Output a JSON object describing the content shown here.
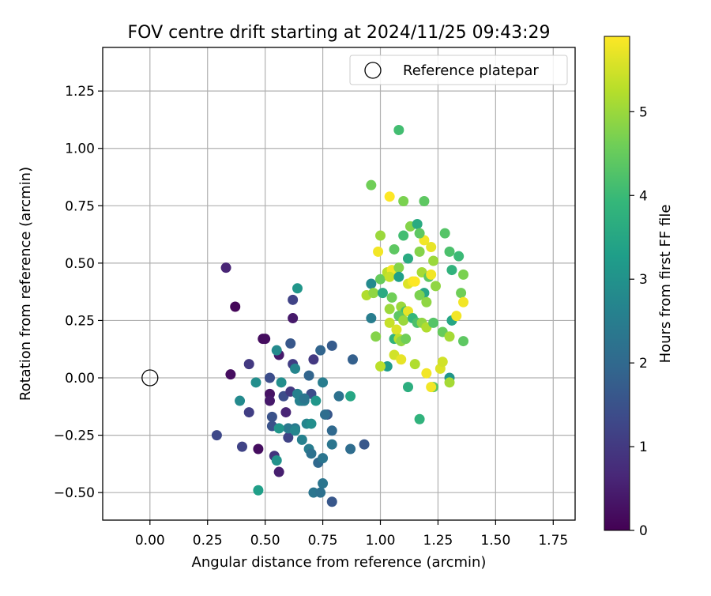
{
  "chart_data": {
    "type": "scatter",
    "title": "FOV centre drift starting at 2024/11/25 09:43:29",
    "xlabel": "Angular distance from reference (arcmin)",
    "ylabel": "Rotation from reference (arcmin)",
    "xlim": [
      -0.205,
      1.845
    ],
    "ylim": [
      -0.62,
      1.44
    ],
    "xticks": [
      "0.00",
      "0.25",
      "0.50",
      "0.75",
      "1.00",
      "1.25",
      "1.50",
      "1.75"
    ],
    "xtick_values": [
      0,
      0.25,
      0.5,
      0.75,
      1.0,
      1.25,
      1.5,
      1.75
    ],
    "yticks": [
      "−0.50",
      "−0.25",
      "0.00",
      "0.25",
      "0.50",
      "0.75",
      "1.00",
      "1.25"
    ],
    "ytick_values": [
      -0.5,
      -0.25,
      0,
      0.25,
      0.5,
      0.75,
      1.0,
      1.25
    ],
    "grid": true,
    "legend": {
      "position": "top-right",
      "entries": [
        "Reference platepar"
      ]
    },
    "reference_point": {
      "x": 0.0,
      "y": 0.0,
      "marker": "open-circle"
    },
    "colorbar": {
      "label": "Hours from first FF file",
      "colormap": "viridis",
      "range": [
        0,
        5.9
      ],
      "ticks": [
        "0",
        "1",
        "2",
        "3",
        "4",
        "5"
      ],
      "tick_values": [
        0,
        1,
        2,
        3,
        4,
        5
      ]
    },
    "colormap_stops": [
      "#440154",
      "#482878",
      "#3e4989",
      "#31688e",
      "#26828e",
      "#1f9e89",
      "#35b779",
      "#6ece58",
      "#b5de2b",
      "#fde725"
    ],
    "points": [
      {
        "x": 0.33,
        "y": 0.48,
        "h": 0.6
      },
      {
        "x": 0.37,
        "y": 0.31,
        "h": 0.1
      },
      {
        "x": 0.35,
        "y": 0.015,
        "h": 0.2
      },
      {
        "x": 0.49,
        "y": 0.17,
        "h": 0.2
      },
      {
        "x": 0.56,
        "y": 0.1,
        "h": 0.4
      },
      {
        "x": 0.62,
        "y": 0.26,
        "h": 0.4
      },
      {
        "x": 0.62,
        "y": 0.34,
        "h": 1.2
      },
      {
        "x": 0.52,
        "y": -0.07,
        "h": 0.3
      },
      {
        "x": 0.52,
        "y": -0.1,
        "h": 0.4
      },
      {
        "x": 0.59,
        "y": -0.15,
        "h": 0.6
      },
      {
        "x": 0.47,
        "y": -0.31,
        "h": 0.2
      },
      {
        "x": 0.56,
        "y": -0.41,
        "h": 0.5
      },
      {
        "x": 0.54,
        "y": -0.34,
        "h": 0.9
      },
      {
        "x": 0.43,
        "y": 0.06,
        "h": 1.0
      },
      {
        "x": 0.43,
        "y": -0.15,
        "h": 1.1
      },
      {
        "x": 0.4,
        "y": -0.3,
        "h": 1.2
      },
      {
        "x": 0.29,
        "y": -0.25,
        "h": 1.3
      },
      {
        "x": 0.52,
        "y": 0.0,
        "h": 1.4
      },
      {
        "x": 0.53,
        "y": -0.17,
        "h": 1.5
      },
      {
        "x": 0.53,
        "y": -0.21,
        "h": 1.5
      },
      {
        "x": 0.6,
        "y": -0.26,
        "h": 1.2
      },
      {
        "x": 0.58,
        "y": -0.08,
        "h": 1.4
      },
      {
        "x": 0.61,
        "y": -0.06,
        "h": 1.0
      },
      {
        "x": 0.62,
        "y": 0.06,
        "h": 1.1
      },
      {
        "x": 0.61,
        "y": 0.15,
        "h": 1.6
      },
      {
        "x": 0.66,
        "y": -0.1,
        "h": 1.3
      },
      {
        "x": 0.7,
        "y": -0.07,
        "h": 1.4
      },
      {
        "x": 0.71,
        "y": 0.08,
        "h": 1.0
      },
      {
        "x": 0.69,
        "y": 0.01,
        "h": 1.9
      },
      {
        "x": 0.74,
        "y": 0.12,
        "h": 1.9
      },
      {
        "x": 0.79,
        "y": 0.14,
        "h": 1.7
      },
      {
        "x": 0.77,
        "y": -0.16,
        "h": 1.6
      },
      {
        "x": 0.76,
        "y": -0.16,
        "h": 2.1
      },
      {
        "x": 0.79,
        "y": -0.23,
        "h": 2.0
      },
      {
        "x": 0.82,
        "y": -0.08,
        "h": 2.2
      },
      {
        "x": 0.87,
        "y": -0.31,
        "h": 2.1
      },
      {
        "x": 0.88,
        "y": 0.08,
        "h": 1.8
      },
      {
        "x": 0.93,
        "y": -0.29,
        "h": 1.6
      },
      {
        "x": 0.96,
        "y": 0.26,
        "h": 2.5
      },
      {
        "x": 0.6,
        "y": -0.22,
        "h": 2.4
      },
      {
        "x": 0.63,
        "y": -0.22,
        "h": 2.4
      },
      {
        "x": 0.66,
        "y": -0.27,
        "h": 2.6
      },
      {
        "x": 0.69,
        "y": -0.31,
        "h": 2.5
      },
      {
        "x": 0.7,
        "y": -0.33,
        "h": 2.2
      },
      {
        "x": 0.73,
        "y": -0.37,
        "h": 2.0
      },
      {
        "x": 0.75,
        "y": -0.35,
        "h": 2.3
      },
      {
        "x": 0.75,
        "y": -0.46,
        "h": 2.3
      },
      {
        "x": 0.71,
        "y": -0.5,
        "h": 2.3
      },
      {
        "x": 0.74,
        "y": -0.5,
        "h": 2.2
      },
      {
        "x": 0.79,
        "y": -0.54,
        "h": 1.6
      },
      {
        "x": 0.79,
        "y": -0.29,
        "h": 2.3
      },
      {
        "x": 0.5,
        "y": 0.17,
        "h": 0.2
      },
      {
        "x": 0.55,
        "y": 0.12,
        "h": 2.8
      },
      {
        "x": 0.64,
        "y": 0.39,
        "h": 3.1
      },
      {
        "x": 0.55,
        "y": -0.36,
        "h": 3.0
      },
      {
        "x": 0.47,
        "y": -0.49,
        "h": 3.3
      },
      {
        "x": 0.39,
        "y": -0.1,
        "h": 2.8
      },
      {
        "x": 0.46,
        "y": -0.02,
        "h": 2.9
      },
      {
        "x": 0.56,
        "y": -0.22,
        "h": 3.1
      },
      {
        "x": 0.57,
        "y": -0.02,
        "h": 2.9
      },
      {
        "x": 0.63,
        "y": -0.23,
        "h": 2.7
      },
      {
        "x": 0.64,
        "y": -0.07,
        "h": 2.6
      },
      {
        "x": 0.65,
        "y": -0.1,
        "h": 2.6
      },
      {
        "x": 0.67,
        "y": -0.1,
        "h": 2.5
      },
      {
        "x": 0.68,
        "y": -0.2,
        "h": 2.7
      },
      {
        "x": 0.7,
        "y": -0.2,
        "h": 2.9
      },
      {
        "x": 0.72,
        "y": -0.1,
        "h": 3.1
      },
      {
        "x": 0.75,
        "y": -0.02,
        "h": 2.5
      },
      {
        "x": 0.63,
        "y": 0.04,
        "h": 2.7
      },
      {
        "x": 0.87,
        "y": -0.08,
        "h": 3.5
      },
      {
        "x": 0.67,
        "y": -0.09,
        "h": 2.3
      },
      {
        "x": 1.08,
        "y": 1.08,
        "h": 4.1
      },
      {
        "x": 0.96,
        "y": 0.84,
        "h": 4.6
      },
      {
        "x": 1.04,
        "y": 0.79,
        "h": 5.9
      },
      {
        "x": 1.1,
        "y": 0.77,
        "h": 4.7
      },
      {
        "x": 1.19,
        "y": 0.77,
        "h": 4.4
      },
      {
        "x": 1.13,
        "y": 0.66,
        "h": 4.8
      },
      {
        "x": 1.16,
        "y": 0.67,
        "h": 3.6
      },
      {
        "x": 1.19,
        "y": 0.6,
        "h": 5.8
      },
      {
        "x": 1.22,
        "y": 0.57,
        "h": 5.7
      },
      {
        "x": 1.28,
        "y": 0.63,
        "h": 4.3
      },
      {
        "x": 1.1,
        "y": 0.62,
        "h": 4.1
      },
      {
        "x": 1.17,
        "y": 0.63,
        "h": 4.4
      },
      {
        "x": 1.0,
        "y": 0.62,
        "h": 5.0
      },
      {
        "x": 0.99,
        "y": 0.55,
        "h": 5.8
      },
      {
        "x": 1.06,
        "y": 0.56,
        "h": 4.4
      },
      {
        "x": 1.17,
        "y": 0.55,
        "h": 4.8
      },
      {
        "x": 1.3,
        "y": 0.55,
        "h": 4.2
      },
      {
        "x": 1.34,
        "y": 0.53,
        "h": 4.0
      },
      {
        "x": 1.23,
        "y": 0.51,
        "h": 5.0
      },
      {
        "x": 1.12,
        "y": 0.52,
        "h": 3.6
      },
      {
        "x": 1.31,
        "y": 0.47,
        "h": 3.8
      },
      {
        "x": 1.36,
        "y": 0.45,
        "h": 4.7
      },
      {
        "x": 0.96,
        "y": 0.41,
        "h": 2.8
      },
      {
        "x": 1.0,
        "y": 0.43,
        "h": 4.5
      },
      {
        "x": 1.03,
        "y": 0.46,
        "h": 5.3
      },
      {
        "x": 1.05,
        "y": 0.47,
        "h": 5.8
      },
      {
        "x": 1.04,
        "y": 0.44,
        "h": 5.4
      },
      {
        "x": 1.08,
        "y": 0.48,
        "h": 4.8
      },
      {
        "x": 1.08,
        "y": 0.44,
        "h": 3.3
      },
      {
        "x": 1.12,
        "y": 0.41,
        "h": 5.6
      },
      {
        "x": 1.14,
        "y": 0.42,
        "h": 5.8
      },
      {
        "x": 1.15,
        "y": 0.42,
        "h": 5.9
      },
      {
        "x": 1.18,
        "y": 0.46,
        "h": 5.1
      },
      {
        "x": 1.19,
        "y": 0.37,
        "h": 3.5
      },
      {
        "x": 1.21,
        "y": 0.44,
        "h": 4.4
      },
      {
        "x": 1.22,
        "y": 0.45,
        "h": 5.8
      },
      {
        "x": 1.24,
        "y": 0.4,
        "h": 4.9
      },
      {
        "x": 1.17,
        "y": 0.36,
        "h": 4.7
      },
      {
        "x": 1.2,
        "y": 0.33,
        "h": 4.9
      },
      {
        "x": 0.94,
        "y": 0.36,
        "h": 5.2
      },
      {
        "x": 0.97,
        "y": 0.37,
        "h": 4.9
      },
      {
        "x": 1.01,
        "y": 0.37,
        "h": 3.6
      },
      {
        "x": 1.04,
        "y": 0.3,
        "h": 5.0
      },
      {
        "x": 1.05,
        "y": 0.35,
        "h": 4.6
      },
      {
        "x": 1.09,
        "y": 0.31,
        "h": 5.0
      },
      {
        "x": 1.11,
        "y": 0.29,
        "h": 4.1
      },
      {
        "x": 1.12,
        "y": 0.29,
        "h": 5.7
      },
      {
        "x": 1.08,
        "y": 0.27,
        "h": 4.4
      },
      {
        "x": 1.1,
        "y": 0.25,
        "h": 5.0
      },
      {
        "x": 1.14,
        "y": 0.26,
        "h": 3.9
      },
      {
        "x": 1.16,
        "y": 0.24,
        "h": 4.2
      },
      {
        "x": 1.18,
        "y": 0.24,
        "h": 4.9
      },
      {
        "x": 1.2,
        "y": 0.22,
        "h": 5.2
      },
      {
        "x": 1.23,
        "y": 0.24,
        "h": 4.3
      },
      {
        "x": 1.27,
        "y": 0.2,
        "h": 4.5
      },
      {
        "x": 1.3,
        "y": 0.18,
        "h": 5.1
      },
      {
        "x": 1.31,
        "y": 0.25,
        "h": 3.5
      },
      {
        "x": 1.33,
        "y": 0.27,
        "h": 5.8
      },
      {
        "x": 1.35,
        "y": 0.37,
        "h": 4.6
      },
      {
        "x": 1.36,
        "y": 0.33,
        "h": 5.8
      },
      {
        "x": 1.36,
        "y": 0.16,
        "h": 4.4
      },
      {
        "x": 0.98,
        "y": 0.18,
        "h": 4.8
      },
      {
        "x": 1.04,
        "y": 0.24,
        "h": 5.4
      },
      {
        "x": 1.06,
        "y": 0.17,
        "h": 3.8
      },
      {
        "x": 1.07,
        "y": 0.21,
        "h": 5.6
      },
      {
        "x": 1.08,
        "y": 0.17,
        "h": 5.3
      },
      {
        "x": 1.09,
        "y": 0.16,
        "h": 4.9
      },
      {
        "x": 1.11,
        "y": 0.17,
        "h": 4.6
      },
      {
        "x": 1.03,
        "y": 0.05,
        "h": 3.2
      },
      {
        "x": 1.0,
        "y": 0.05,
        "h": 5.3
      },
      {
        "x": 1.06,
        "y": 0.1,
        "h": 5.5
      },
      {
        "x": 1.09,
        "y": 0.08,
        "h": 5.7
      },
      {
        "x": 1.15,
        "y": 0.06,
        "h": 5.2
      },
      {
        "x": 1.2,
        "y": 0.02,
        "h": 5.8
      },
      {
        "x": 1.26,
        "y": 0.04,
        "h": 5.6
      },
      {
        "x": 1.27,
        "y": 0.07,
        "h": 5.5
      },
      {
        "x": 1.3,
        "y": 0.0,
        "h": 3.1
      },
      {
        "x": 1.3,
        "y": -0.02,
        "h": 5.1
      },
      {
        "x": 1.23,
        "y": -0.04,
        "h": 4.4
      },
      {
        "x": 1.22,
        "y": -0.04,
        "h": 5.8
      },
      {
        "x": 1.12,
        "y": -0.04,
        "h": 3.7
      },
      {
        "x": 1.17,
        "y": -0.18,
        "h": 3.8
      }
    ]
  }
}
